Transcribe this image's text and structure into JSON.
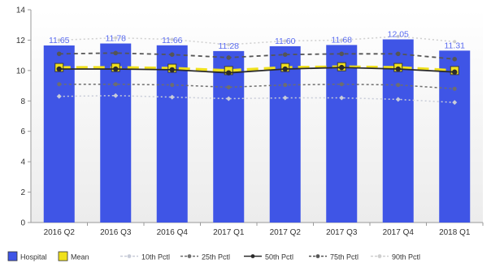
{
  "chart_data": {
    "type": "bar",
    "categories": [
      "2016 Q2",
      "2016 Q3",
      "2016 Q4",
      "2017 Q1",
      "2017 Q2",
      "2017 Q3",
      "2017 Q4",
      "2018 Q1"
    ],
    "ylim": [
      0,
      14
    ],
    "yticks": [
      0,
      2,
      4,
      6,
      8,
      10,
      12,
      14
    ],
    "grid": false,
    "legend_position": "bottom",
    "bar_series": {
      "name": "Hospital",
      "color": "#3f55e6",
      "values": [
        11.65,
        11.78,
        11.66,
        11.28,
        11.6,
        11.68,
        12.05,
        11.31
      ],
      "labels": [
        "11.65",
        "11.78",
        "11.66",
        "11.28",
        "11.60",
        "11.68",
        "12.05",
        "11.31"
      ]
    },
    "line_series": [
      {
        "name": "Mean",
        "color": "#f0e11c",
        "style": "mean",
        "values": [
          10.2,
          10.2,
          10.15,
          10.0,
          10.2,
          10.25,
          10.2,
          10.0
        ]
      },
      {
        "name": "10th Pctl",
        "color": "#c8ccd8",
        "style": "dotted-diamond",
        "values": [
          8.3,
          8.35,
          8.25,
          8.15,
          8.2,
          8.2,
          8.1,
          7.9
        ]
      },
      {
        "name": "25th Pctl",
        "color": "#6e6e6e",
        "style": "dotted",
        "values": [
          9.1,
          9.1,
          9.05,
          8.9,
          9.05,
          9.1,
          9.05,
          8.8
        ]
      },
      {
        "name": "50th Pctl",
        "color": "#2b2b2b",
        "style": "solid-marker",
        "values": [
          10.1,
          10.1,
          10.05,
          9.85,
          10.1,
          10.2,
          10.1,
          9.9
        ]
      },
      {
        "name": "75th Pctl",
        "color": "#555555",
        "style": "dashed-marker",
        "values": [
          11.1,
          11.15,
          11.05,
          10.85,
          11.05,
          11.1,
          11.1,
          10.75
        ]
      },
      {
        "name": "90th Pctl",
        "color": "#cfcfcf",
        "style": "dotted-light",
        "values": [
          12.0,
          12.15,
          12.05,
          11.7,
          11.95,
          12.0,
          12.25,
          11.9
        ]
      }
    ],
    "legend": [
      {
        "label": "Hospital",
        "kind": "box",
        "color": "#3f55e6"
      },
      {
        "label": "Mean",
        "kind": "box",
        "color": "#f0e11c"
      },
      {
        "label": "10th Pctl",
        "kind": "line",
        "color": "#c8ccd8"
      },
      {
        "label": "25th Pctl",
        "kind": "line",
        "color": "#6e6e6e"
      },
      {
        "label": "50th Pctl",
        "kind": "line",
        "color": "#2b2b2b"
      },
      {
        "label": "75th Pctl",
        "kind": "line",
        "color": "#555555"
      },
      {
        "label": "90th Pctl",
        "kind": "line",
        "color": "#cfcfcf"
      }
    ]
  }
}
